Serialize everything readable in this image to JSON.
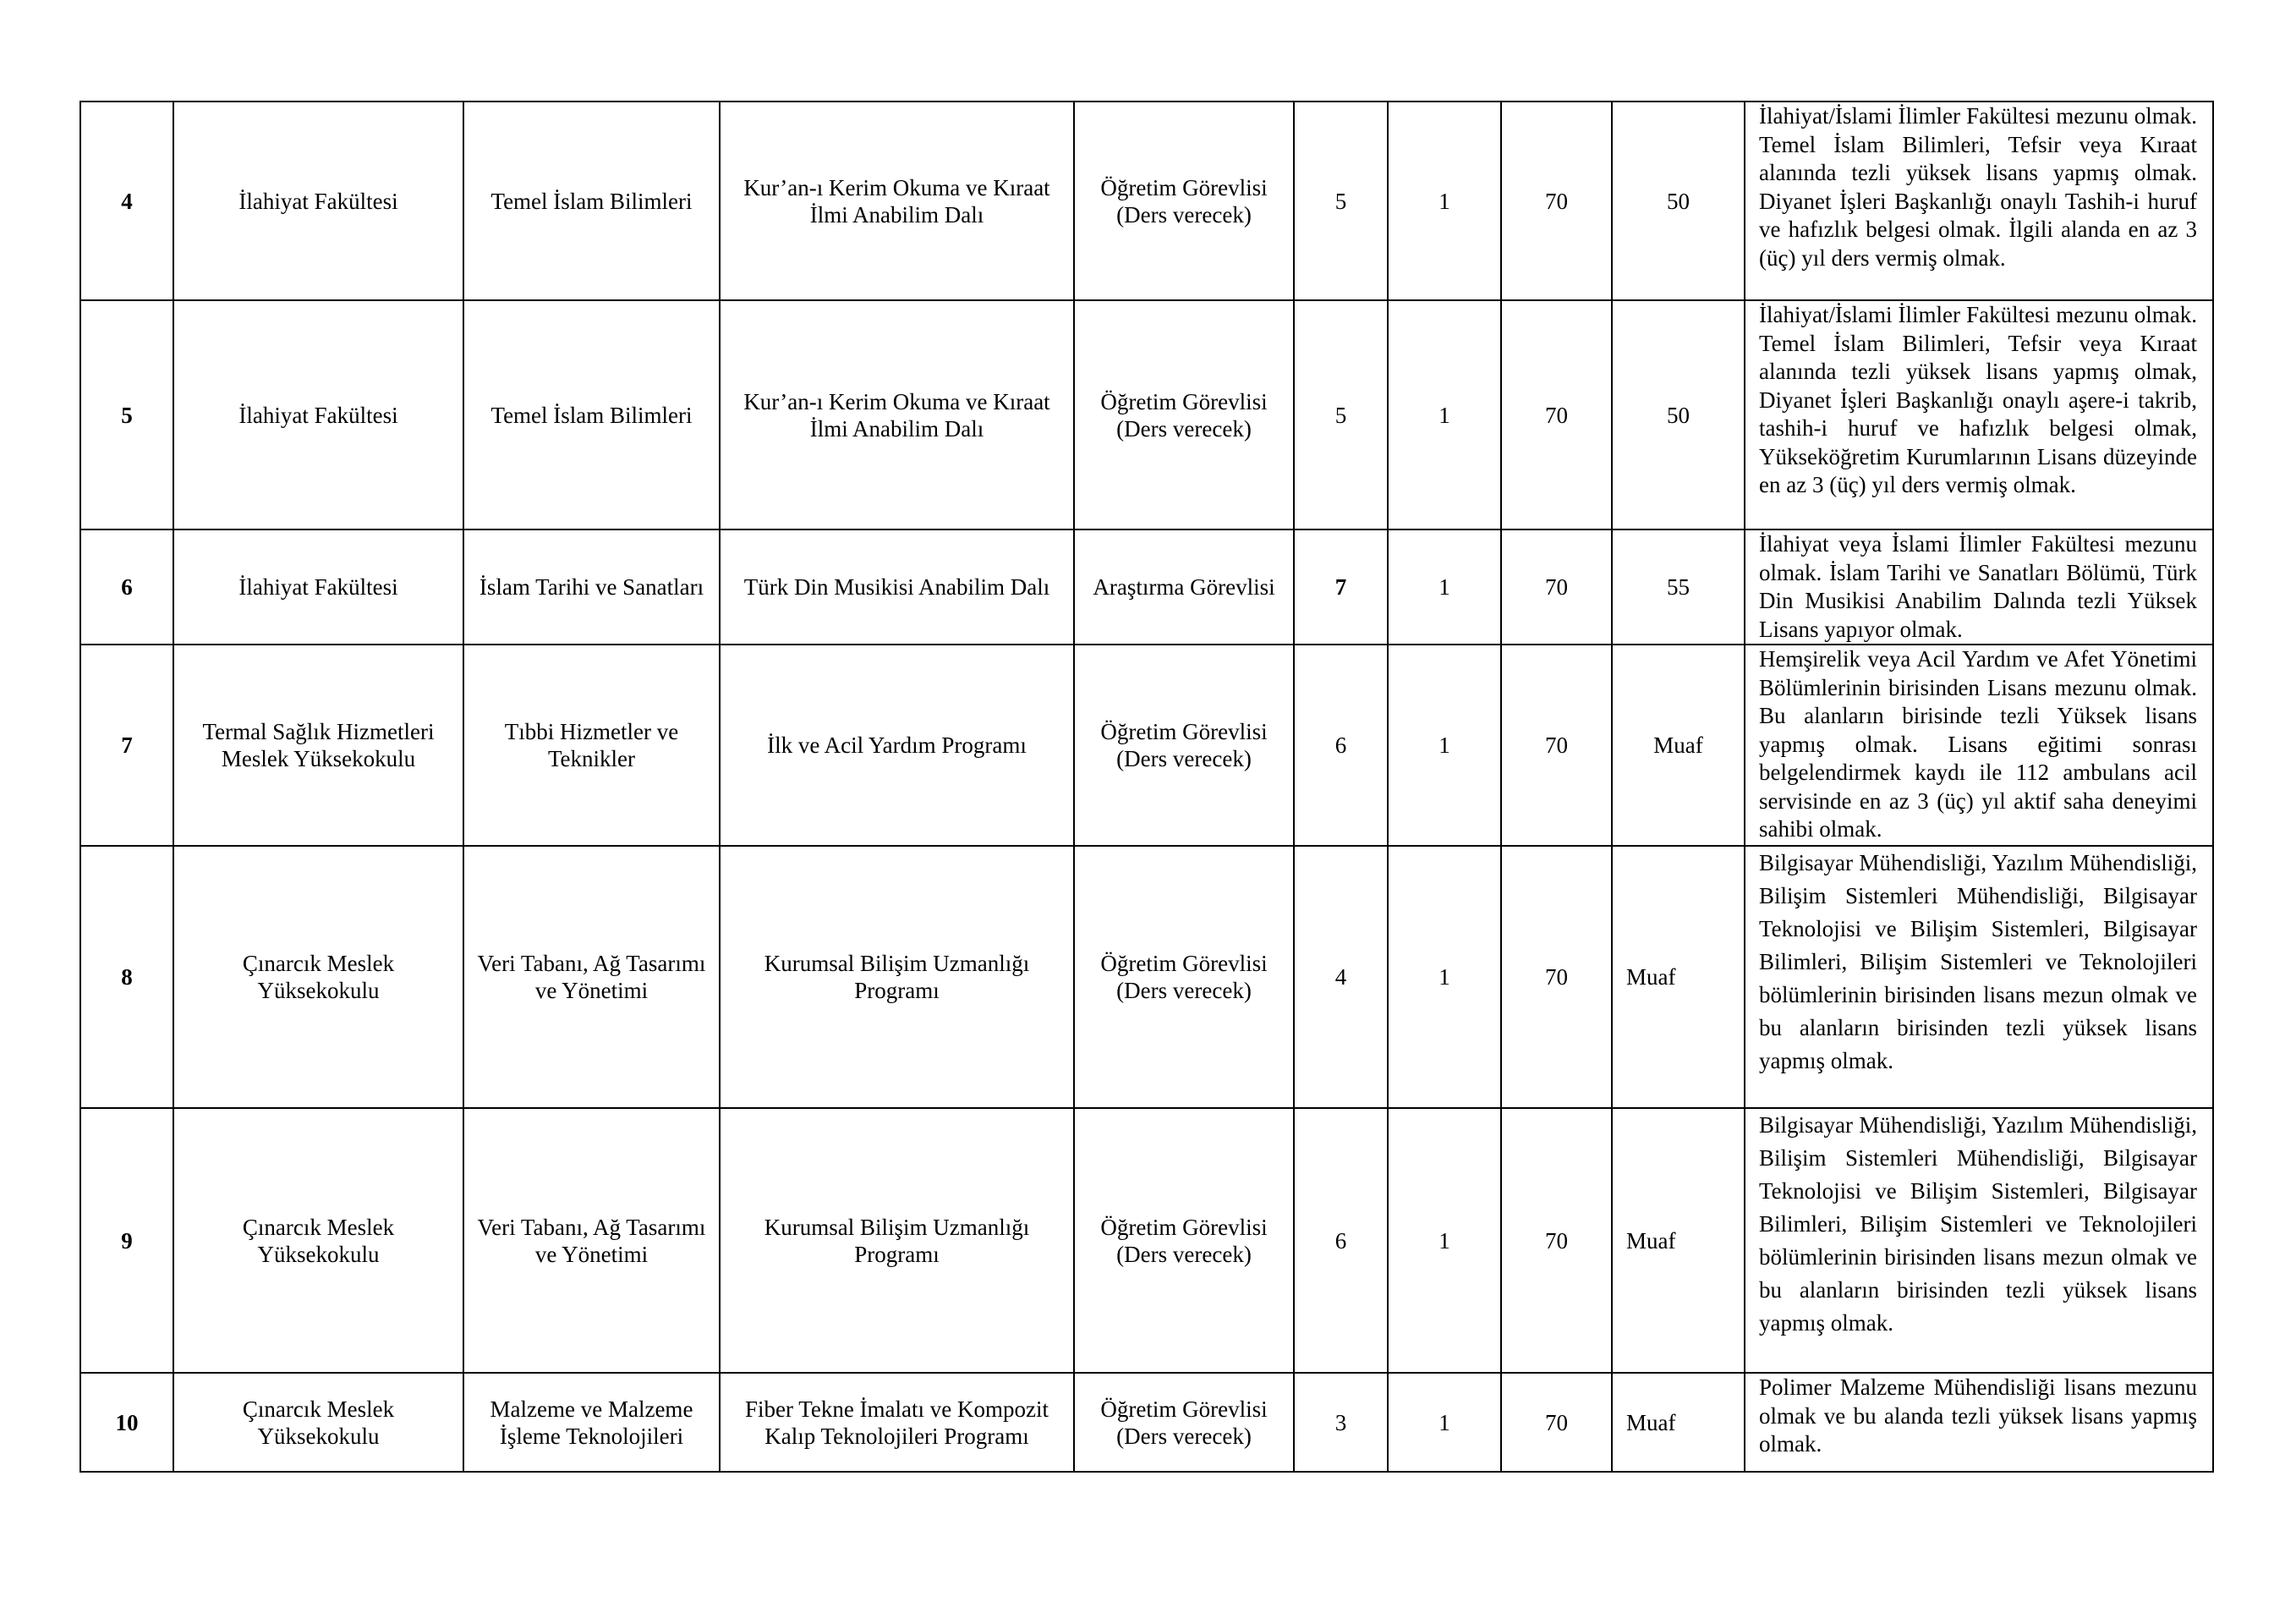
{
  "rows": [
    {
      "no": "4",
      "unit": "İlahiyat Fakültesi",
      "department": "Temel İslam Bilimleri",
      "program": "Kur’an-ı Kerim Okuma ve Kıraat İlmi Anabilim Dalı",
      "title": "Öğretim Görevlisi (Ders verecek)",
      "degree": "5",
      "count": "1",
      "ales": "70",
      "language": "50",
      "requirements": "İlahiyat/İslami İlimler Fakültesi mezunu olmak. Temel İslam Bilimleri, Tefsir veya Kıraat alanında tezli yüksek lisans yapmış olmak. Diyanet İşleri Başkanlığı onaylı Tashih-i huruf ve hafızlık belgesi olmak. İlgili alanda en az 3 (üç) yıl ders vermiş olmak."
    },
    {
      "no": "5",
      "unit": "İlahiyat Fakültesi",
      "department": "Temel İslam Bilimleri",
      "program": "Kur’an-ı Kerim Okuma ve Kıraat İlmi Anabilim Dalı",
      "title": "Öğretim Görevlisi (Ders verecek)",
      "degree": "5",
      "count": "1",
      "ales": "70",
      "language": "50",
      "requirements": "İlahiyat/İslami İlimler Fakültesi mezunu olmak. Temel İslam Bilimleri, Tefsir veya Kıraat alanında tezli yüksek lisans yapmış olmak, Diyanet İşleri Başkanlığı onaylı aşere-i takrib, tashih-i huruf ve hafızlık belgesi olmak, Yükseköğretim Kurumlarının Lisans düzeyinde en az 3 (üç) yıl ders vermiş olmak."
    },
    {
      "no": "6",
      "unit": "İlahiyat Fakültesi",
      "department": "İslam Tarihi ve Sanatları",
      "program": "Türk Din Musikisi Anabilim Dalı",
      "title": "Araştırma Görevlisi",
      "degree": "7",
      "count": "1",
      "ales": "70",
      "language": "55",
      "requirements": "İlahiyat veya İslami İlimler Fakültesi mezunu olmak. İslam Tarihi ve Sanatları Bölümü, Türk Din Musikisi Anabilim Dalında tezli Yüksek Lisans yapıyor olmak."
    },
    {
      "no": "7",
      "unit": "Termal Sağlık Hizmetleri Meslek Yüksekokulu",
      "department": "Tıbbi Hizmetler ve Teknikler",
      "program": "İlk ve Acil Yardım Programı",
      "title": "Öğretim Görevlisi (Ders verecek)",
      "degree": "6",
      "count": "1",
      "ales": "70",
      "language": "Muaf",
      "requirements": "Hemşirelik veya Acil Yardım ve Afet Yönetimi Bölümlerinin birisinden Lisans mezunu olmak. Bu alanların birisinde tezli Yüksek lisans yapmış olmak. Lisans eğitimi sonrası belgelendirmek kaydı ile 112 ambulans acil  servisinde en az 3 (üç) yıl aktif saha deneyimi sahibi olmak."
    },
    {
      "no": "8",
      "unit": "Çınarcık Meslek Yüksekokulu",
      "department": "Veri Tabanı, Ağ Tasarımı ve Yönetimi",
      "program": "Kurumsal Bilişim Uzmanlığı Programı",
      "title": "Öğretim Görevlisi (Ders verecek)",
      "degree": "4",
      "count": "1",
      "ales": "70",
      "language": "Muaf",
      "requirements": "Bilgisayar Mühendisliği, Yazılım Mühendisliği, Bilişim Sistemleri Mühendisliği, Bilgisayar Teknolojisi ve Bilişim Sistemleri, Bilgisayar Bilimleri, Bilişim Sistemleri ve Teknolojileri bölümlerinin birisinden lisans mezun olmak ve bu alanların birisinden tezli yüksek lisans yapmış olmak."
    },
    {
      "no": "9",
      "unit": "Çınarcık Meslek Yüksekokulu",
      "department": "Veri Tabanı, Ağ Tasarımı ve Yönetimi",
      "program": "Kurumsal Bilişim Uzmanlığı Programı",
      "title": "Öğretim Görevlisi (Ders verecek)",
      "degree": "6",
      "count": "1",
      "ales": "70",
      "language": "Muaf",
      "requirements": "Bilgisayar Mühendisliği, Yazılım Mühendisliği, Bilişim Sistemleri Mühendisliği, Bilgisayar Teknolojisi ve Bilişim Sistemleri, Bilgisayar Bilimleri, Bilişim Sistemleri ve Teknolojileri bölümlerinin birisinden lisans mezun olmak ve bu alanların birisinden tezli yüksek lisans yapmış olmak."
    },
    {
      "no": "10",
      "unit": "Çınarcık Meslek Yüksekokulu",
      "department": "Malzeme ve Malzeme İşleme Teknolojileri",
      "program": "Fiber Tekne İmalatı ve Kompozit Kalıp Teknolojileri Programı",
      "title": "Öğretim Görevlisi (Ders verecek)",
      "degree": "3",
      "count": "1",
      "ales": "70",
      "language": "Muaf",
      "requirements": "Polimer Malzeme Mühendisliği lisans mezunu olmak ve bu alanda tezli yüksek lisans yapmış olmak."
    }
  ]
}
